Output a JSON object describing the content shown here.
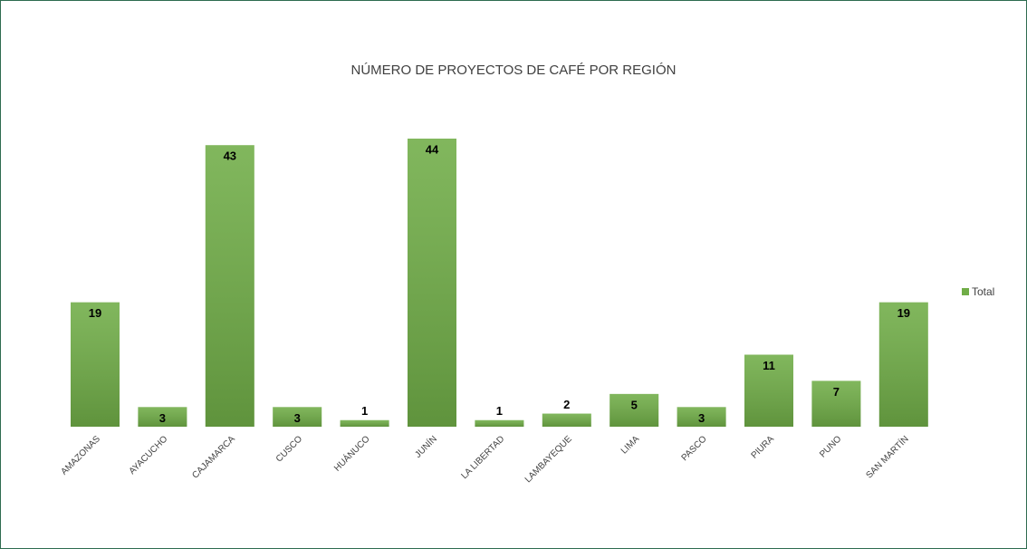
{
  "chart_data": {
    "type": "bar",
    "title": "NÚMERO DE PROYECTOS DE CAFÉ POR REGIÓN",
    "categories": [
      "AMAZONAS",
      "AYACUCHO",
      "CAJAMARCA",
      "CUSCO",
      "HUÁNUCO",
      "JUNÍN",
      "LA LIBERTAD",
      "LAMBAYEQUE",
      "LIMA",
      "PASCO",
      "PIURA",
      "PUNO",
      "SAN MARTÍN"
    ],
    "series": [
      {
        "name": "Total",
        "color": "#70ad47",
        "values": [
          19,
          3,
          43,
          3,
          1,
          44,
          1,
          2,
          5,
          3,
          11,
          7,
          19
        ]
      }
    ],
    "legend": "right",
    "grid": false
  }
}
